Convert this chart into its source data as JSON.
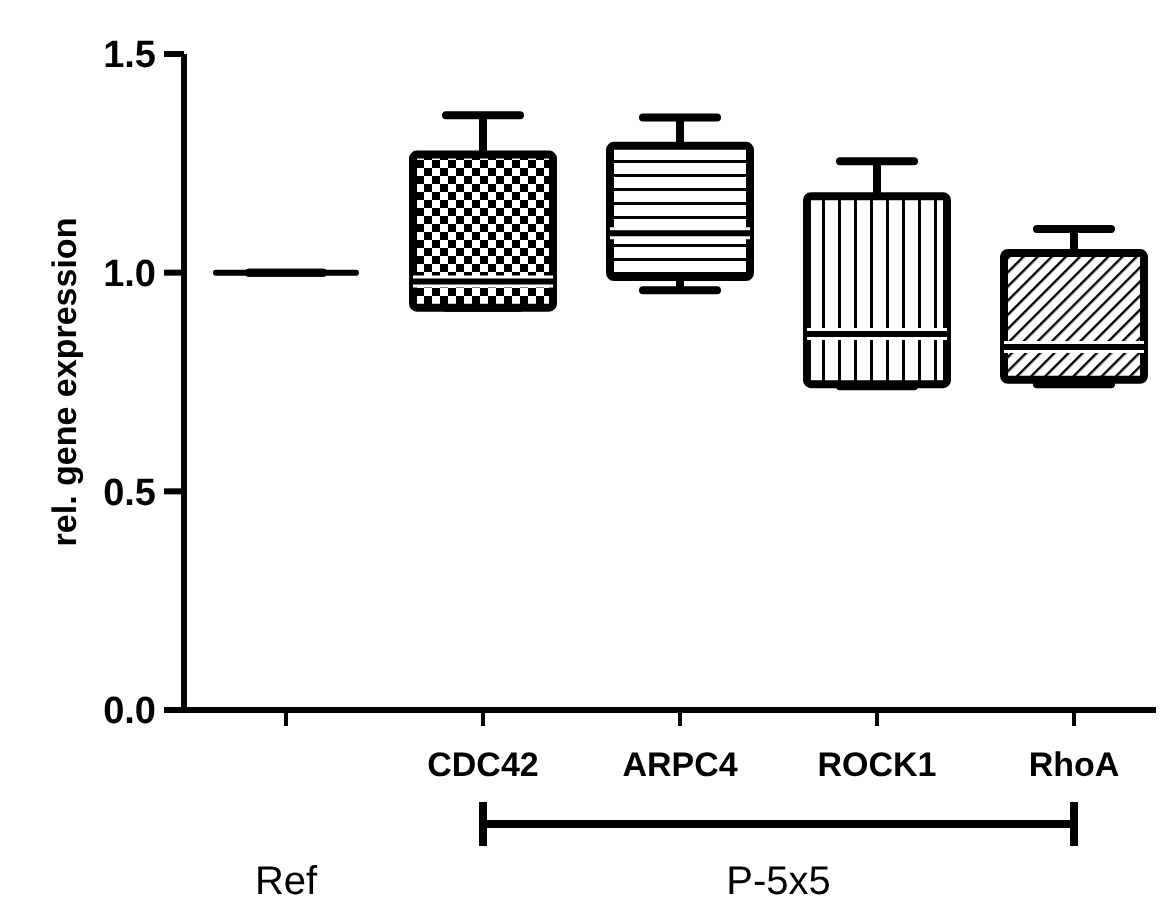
{
  "chart_data": {
    "type": "box",
    "ylabel": "rel. gene expression",
    "categories": [
      null,
      "CDC42",
      "ARPC4",
      "ROCK1",
      "RhoA"
    ],
    "boxes": [
      {
        "low": 1.0,
        "q1": 1.0,
        "median": 1.0,
        "q3": 1.0,
        "high": 1.0
      },
      {
        "low": 0.92,
        "q1": 0.92,
        "median": 0.98,
        "q3": 1.27,
        "high": 1.36
      },
      {
        "low": 0.96,
        "q1": 0.99,
        "median": 1.09,
        "q3": 1.29,
        "high": 1.355
      },
      {
        "low": 0.74,
        "q1": 0.745,
        "median": 0.86,
        "q3": 1.175,
        "high": 1.255
      },
      {
        "low": 0.745,
        "q1": 0.755,
        "median": 0.83,
        "q3": 1.045,
        "high": 1.1
      }
    ],
    "color": "#000000",
    "ylim": [
      0,
      1.5
    ],
    "yticks": [
      {
        "value": 0,
        "label": "0.0"
      },
      0.5,
      {
        "value": 1,
        "label": "1.0"
      },
      1.5
    ],
    "annotations": [
      "Ref",
      "P-5x5"
    ]
  }
}
